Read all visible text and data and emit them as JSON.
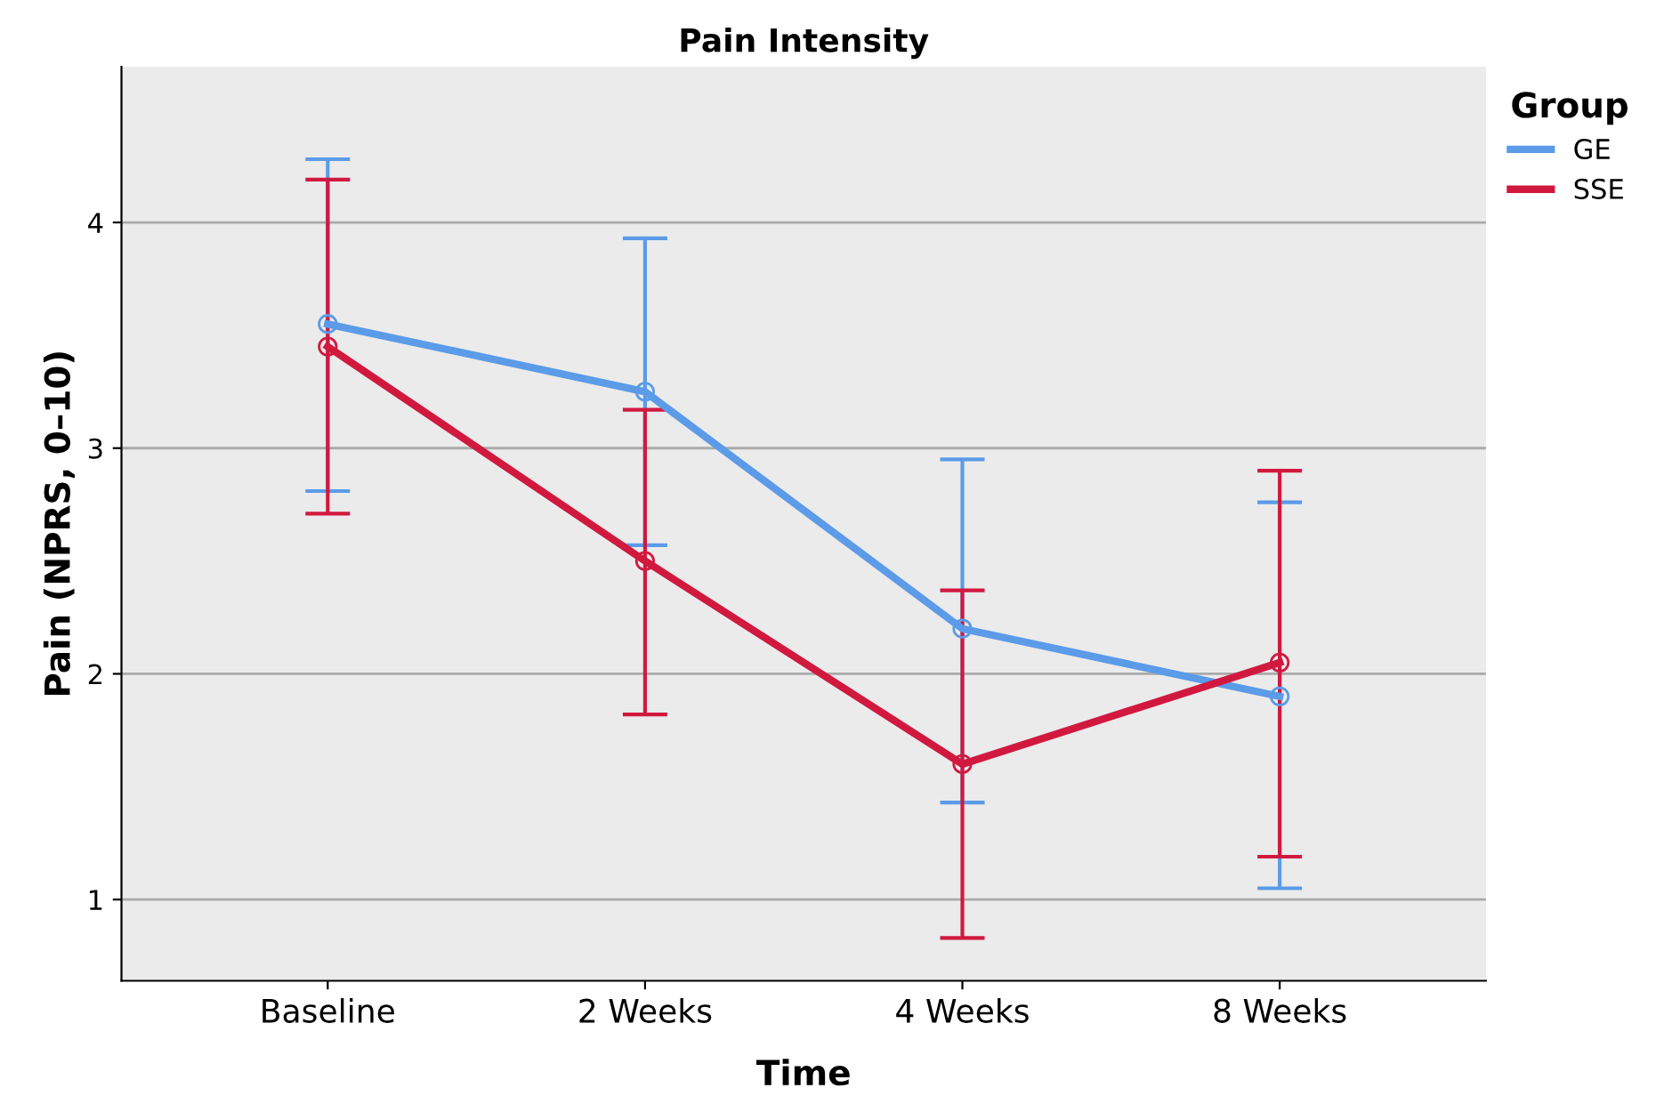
{
  "chart_data": {
    "type": "line",
    "title": "Pain Intensity",
    "xlabel": "Time",
    "ylabel": "Pain (NPRS, 0–10)",
    "legend_title": "Group",
    "categories": [
      "Baseline",
      "2 Weeks",
      "4 Weeks",
      "8 Weeks"
    ],
    "series": [
      {
        "name": "GE",
        "color": "#5b9be8",
        "values": [
          3.55,
          3.25,
          2.2,
          1.9
        ],
        "errors": [
          [
            2.81,
            4.28
          ],
          [
            2.57,
            3.93
          ],
          [
            1.43,
            2.95
          ],
          [
            1.05,
            2.76
          ]
        ]
      },
      {
        "name": "SSE",
        "color": "#d1193f",
        "values": [
          3.45,
          2.5,
          1.6,
          2.05
        ],
        "errors": [
          [
            2.71,
            4.19
          ],
          [
            1.82,
            3.17
          ],
          [
            0.83,
            2.37
          ],
          [
            1.19,
            2.9
          ]
        ]
      }
    ],
    "ylim": [
      0.64,
      4.69
    ],
    "yticks": [
      1,
      2,
      3,
      4
    ],
    "grid": "y",
    "legend": "top right",
    "marker": "circle",
    "line_style": "solid"
  }
}
